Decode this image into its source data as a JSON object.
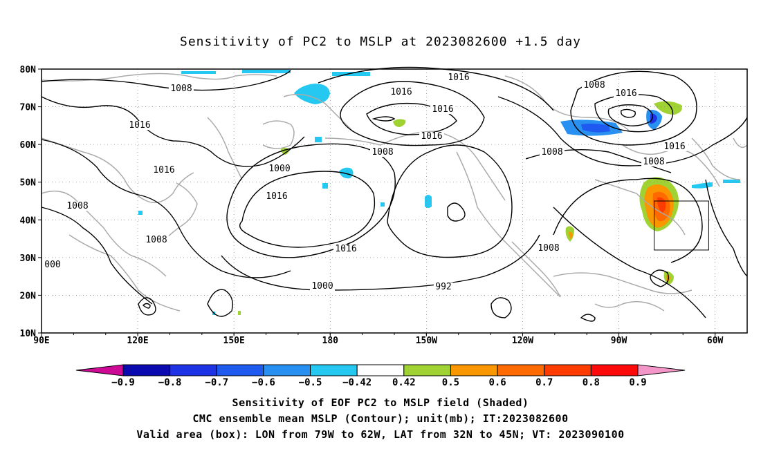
{
  "title": "Sensitivity of PC2 to MSLP at 2023082600 +1.5 day",
  "map": {
    "lon_labels": [
      "90E",
      "120E",
      "150E",
      "180",
      "150W",
      "120W",
      "90W",
      "60W"
    ],
    "lat_labels": [
      "80N",
      "70N",
      "60N",
      "50N",
      "40N",
      "30N",
      "20N",
      "10N"
    ],
    "contour_labels": [
      "1008",
      "1016",
      "1016",
      "1008",
      "1008",
      "000",
      "1008",
      "1008",
      "1000",
      "1016",
      "1016",
      "1016",
      "1016",
      "1016",
      "1000",
      "992",
      "1008",
      "1016",
      "1016",
      "1016",
      "1008",
      "1008"
    ],
    "valid_box": {
      "lon_w": -79,
      "lon_e": -62,
      "lat_s": 32,
      "lat_n": 45
    },
    "colors": {
      "coast": "#aaaaaa",
      "contour": "#000000",
      "grid": "#888888"
    }
  },
  "colorbar": {
    "labels": [
      "−0.9",
      "−0.8",
      "−0.7",
      "−0.6",
      "−0.5",
      "−0.42",
      "0.42",
      "0.5",
      "0.6",
      "0.7",
      "0.8",
      "0.9"
    ],
    "colors": [
      "#cc0a96",
      "#0a0ab0",
      "#1e32e6",
      "#1e5af0",
      "#2890f0",
      "#24c8f0",
      "#ffffff",
      "#a0d234",
      "#fa9600",
      "#ff6a00",
      "#ff3c00",
      "#ff0a0a",
      "#f596c8"
    ]
  },
  "captions": {
    "line1": "Sensitivity of EOF PC2 to MSLP field (Shaded)",
    "line2": "CMC ensemble mean MSLP (Contour); unit(mb); IT:2023082600",
    "line3": "Valid area (box): LON from 79W to 62W, LAT from 32N to 45N; VT: 2023090100"
  }
}
